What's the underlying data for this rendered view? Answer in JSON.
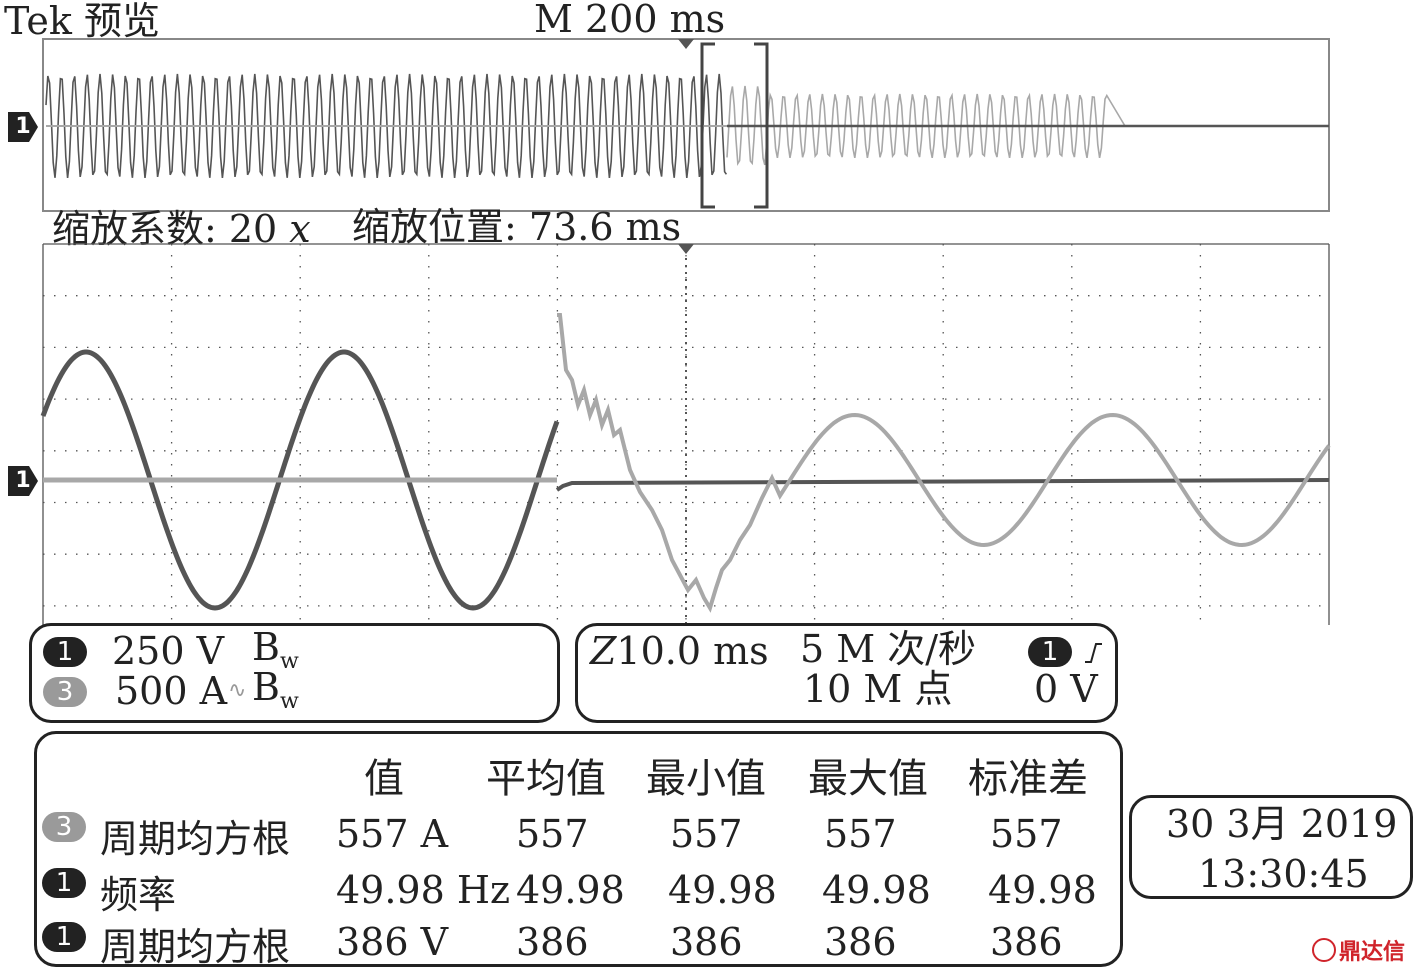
{
  "header": {
    "brand": "Tek",
    "mode": "预览",
    "timebase": "M 200 ms"
  },
  "zoom": {
    "factor_label": "缩放系数:",
    "factor_value": "20",
    "factor_unit": "x",
    "position_label": "缩放位置:",
    "position_value": "73.6 ms"
  },
  "channel_marker": "1",
  "channels": [
    {
      "badge": "1",
      "scale": "250 V",
      "bw": "B",
      "bw_sub": "w",
      "coupling": ""
    },
    {
      "badge": "3",
      "scale": "500 A",
      "bw": "B",
      "bw_sub": "w",
      "coupling": "∿"
    }
  ],
  "acquisition": {
    "zoom_time": "10.0 ms",
    "zoom_prefix": "Z",
    "sample_rate": "5 M 次/秒",
    "record_length": "10 M 点",
    "trigger_channel": "1",
    "trigger_level": "0 V"
  },
  "measurements": {
    "columns": [
      "值",
      "平均值",
      "最小值",
      "最大值",
      "标准差"
    ],
    "rows": [
      {
        "badge": "3",
        "name": "周期均方根",
        "value": "557 A",
        "mean": "557",
        "min": "557",
        "max": "557",
        "std": "557"
      },
      {
        "badge": "1",
        "name": "频率",
        "value": "49.98 Hz",
        "mean": "49.98",
        "min": "49.98",
        "max": "49.98",
        "std": "49.98"
      },
      {
        "badge": "1",
        "name": "周期均方根",
        "value": "386 V",
        "mean": "386",
        "min": "386",
        "max": "386",
        "std": "386"
      }
    ]
  },
  "datetime": {
    "date": "30 3月 2019",
    "time": "13:30:45"
  },
  "watermark": "鼎达信",
  "colors": {
    "trace_voltage": "#555555",
    "trace_current": "#a8a8a8",
    "grid": "#555555",
    "watermark": "#d0242b"
  }
}
